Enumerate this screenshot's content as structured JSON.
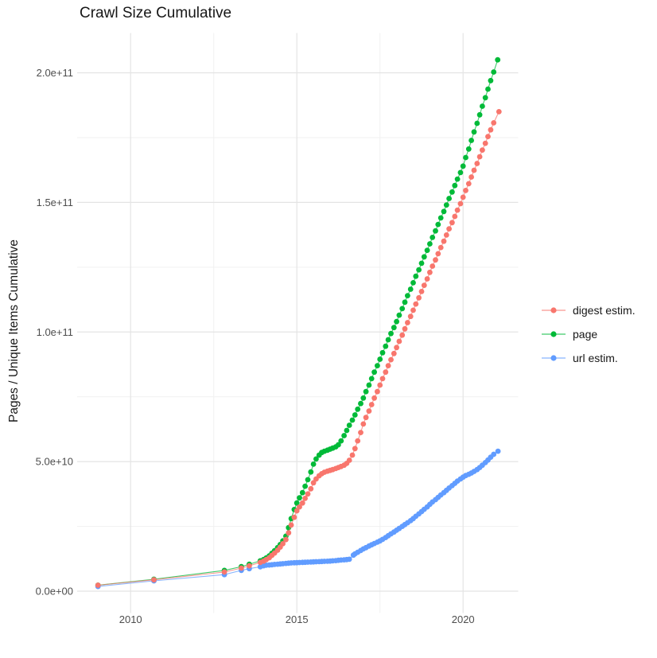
{
  "chart_data": {
    "type": "scatter",
    "title": "Crawl Size Cumulative",
    "xlabel": "",
    "ylabel": "Pages / Unique Items Cumulative",
    "legend_position": "right",
    "grid": true,
    "xlim": [
      2008.4,
      2021.6
    ],
    "ylim": [
      0,
      215000000000
    ],
    "x_ticks": [
      2010,
      2015,
      2020
    ],
    "x_tick_labels": [
      "2010",
      "2015",
      "2020"
    ],
    "x_minor_ticks": [
      2012.5,
      2017.5
    ],
    "y_ticks": [
      0,
      50000000000,
      100000000000,
      150000000000,
      200000000000
    ],
    "y_tick_labels": [
      "0.0e+00",
      "5.0e+10",
      "1.0e+11",
      "1.5e+11",
      "2.0e+11"
    ],
    "y_minor_ticks": [
      25000000000,
      75000000000,
      125000000000,
      175000000000
    ],
    "value_unit": "billions (1e9) of pages / unique items, x = calendar year",
    "series": [
      {
        "name": "digest estim.",
        "color": "#F8766D",
        "points": [
          [
            2009.02,
            2.3
          ],
          [
            2010.7,
            4.4
          ],
          [
            2012.82,
            7.4
          ],
          [
            2013.33,
            8.9
          ],
          [
            2013.57,
            9.8
          ],
          [
            2013.9,
            11.1
          ],
          [
            2014.0,
            11.6
          ],
          [
            2014.08,
            12.2
          ],
          [
            2014.17,
            12.9
          ],
          [
            2014.25,
            13.8
          ],
          [
            2014.33,
            14.7
          ],
          [
            2014.42,
            15.8
          ],
          [
            2014.5,
            17.0
          ],
          [
            2014.58,
            18.3
          ],
          [
            2014.67,
            19.9
          ],
          [
            2014.75,
            22.5
          ],
          [
            2014.83,
            25.5
          ],
          [
            2014.92,
            28.5
          ],
          [
            2015.0,
            31.0
          ],
          [
            2015.08,
            32.5
          ],
          [
            2015.17,
            34.0
          ],
          [
            2015.25,
            35.8
          ],
          [
            2015.33,
            37.5
          ],
          [
            2015.42,
            39.5
          ],
          [
            2015.5,
            41.8
          ],
          [
            2015.58,
            43.3
          ],
          [
            2015.67,
            44.5
          ],
          [
            2015.75,
            45.3
          ],
          [
            2015.83,
            45.9
          ],
          [
            2015.92,
            46.3
          ],
          [
            2016.0,
            46.6
          ],
          [
            2016.08,
            46.9
          ],
          [
            2016.17,
            47.3
          ],
          [
            2016.25,
            47.7
          ],
          [
            2016.33,
            48.1
          ],
          [
            2016.42,
            48.6
          ],
          [
            2016.5,
            49.3
          ],
          [
            2016.58,
            50.5
          ],
          [
            2016.67,
            52.5
          ],
          [
            2016.75,
            55.0
          ],
          [
            2016.83,
            58.0
          ],
          [
            2016.92,
            61.2
          ],
          [
            2017.0,
            64.5
          ],
          [
            2017.08,
            67.0
          ],
          [
            2017.17,
            69.5
          ],
          [
            2017.25,
            72.0
          ],
          [
            2017.33,
            74.5
          ],
          [
            2017.42,
            77.0
          ],
          [
            2017.5,
            79.5
          ],
          [
            2017.58,
            82.0
          ],
          [
            2017.67,
            84.5
          ],
          [
            2017.75,
            87.0
          ],
          [
            2017.83,
            89.3
          ],
          [
            2017.92,
            91.7
          ],
          [
            2018.0,
            94.0
          ],
          [
            2018.08,
            96.4
          ],
          [
            2018.17,
            98.8
          ],
          [
            2018.25,
            101.2
          ],
          [
            2018.33,
            103.6
          ],
          [
            2018.42,
            106.0
          ],
          [
            2018.5,
            108.4
          ],
          [
            2018.58,
            110.8
          ],
          [
            2018.67,
            113.2
          ],
          [
            2018.75,
            115.6
          ],
          [
            2018.83,
            118.0
          ],
          [
            2018.92,
            120.5
          ],
          [
            2019.0,
            123.0
          ],
          [
            2019.08,
            125.4
          ],
          [
            2019.17,
            127.8
          ],
          [
            2019.25,
            130.2
          ],
          [
            2019.33,
            132.6
          ],
          [
            2019.42,
            135.0
          ],
          [
            2019.5,
            137.4
          ],
          [
            2019.58,
            139.8
          ],
          [
            2019.67,
            142.2
          ],
          [
            2019.75,
            144.6
          ],
          [
            2019.83,
            147.0
          ],
          [
            2019.92,
            149.5
          ],
          [
            2020.0,
            152.0
          ],
          [
            2020.08,
            154.6
          ],
          [
            2020.17,
            157.2
          ],
          [
            2020.25,
            159.8
          ],
          [
            2020.33,
            162.4
          ],
          [
            2020.42,
            165.0
          ],
          [
            2020.5,
            167.6
          ],
          [
            2020.58,
            170.2
          ],
          [
            2020.67,
            172.8
          ],
          [
            2020.75,
            175.4
          ],
          [
            2020.83,
            178.0
          ],
          [
            2020.92,
            180.7
          ],
          [
            2021.08,
            185.0
          ]
        ]
      },
      {
        "name": "page",
        "color": "#00BA38",
        "points": [
          [
            2009.02,
            2.3
          ],
          [
            2010.7,
            4.6
          ],
          [
            2012.82,
            8.0
          ],
          [
            2013.33,
            9.5
          ],
          [
            2013.57,
            10.4
          ],
          [
            2013.9,
            11.7
          ],
          [
            2014.0,
            12.2
          ],
          [
            2014.08,
            12.8
          ],
          [
            2014.17,
            13.6
          ],
          [
            2014.25,
            14.6
          ],
          [
            2014.33,
            15.6
          ],
          [
            2014.42,
            16.8
          ],
          [
            2014.5,
            18.0
          ],
          [
            2014.58,
            19.4
          ],
          [
            2014.67,
            21.2
          ],
          [
            2014.75,
            24.5
          ],
          [
            2014.83,
            28.0
          ],
          [
            2014.92,
            31.5
          ],
          [
            2015.0,
            34.0
          ],
          [
            2015.08,
            36.0
          ],
          [
            2015.17,
            38.0
          ],
          [
            2015.25,
            40.5
          ],
          [
            2015.33,
            43.0
          ],
          [
            2015.42,
            46.0
          ],
          [
            2015.5,
            49.0
          ],
          [
            2015.58,
            51.0
          ],
          [
            2015.67,
            52.5
          ],
          [
            2015.75,
            53.5
          ],
          [
            2015.83,
            54.0
          ],
          [
            2015.92,
            54.4
          ],
          [
            2016.0,
            54.8
          ],
          [
            2016.08,
            55.2
          ],
          [
            2016.17,
            55.7
          ],
          [
            2016.25,
            56.5
          ],
          [
            2016.33,
            58.0
          ],
          [
            2016.42,
            60.0
          ],
          [
            2016.5,
            62.0
          ],
          [
            2016.58,
            64.0
          ],
          [
            2016.67,
            66.0
          ],
          [
            2016.75,
            68.0
          ],
          [
            2016.83,
            70.2
          ],
          [
            2016.92,
            72.4
          ],
          [
            2017.0,
            74.5
          ],
          [
            2017.08,
            77.0
          ],
          [
            2017.17,
            79.5
          ],
          [
            2017.25,
            82.0
          ],
          [
            2017.33,
            84.5
          ],
          [
            2017.42,
            87.0
          ],
          [
            2017.5,
            89.5
          ],
          [
            2017.58,
            92.0
          ],
          [
            2017.67,
            94.5
          ],
          [
            2017.75,
            97.0
          ],
          [
            2017.83,
            99.4
          ],
          [
            2017.92,
            101.7
          ],
          [
            2018.0,
            104.0
          ],
          [
            2018.08,
            106.5
          ],
          [
            2018.17,
            109.0
          ],
          [
            2018.25,
            111.5
          ],
          [
            2018.33,
            114.0
          ],
          [
            2018.42,
            116.5
          ],
          [
            2018.5,
            119.0
          ],
          [
            2018.58,
            121.5
          ],
          [
            2018.67,
            124.0
          ],
          [
            2018.75,
            126.5
          ],
          [
            2018.83,
            129.0
          ],
          [
            2018.92,
            131.5
          ],
          [
            2019.0,
            134.0
          ],
          [
            2019.08,
            136.5
          ],
          [
            2019.17,
            139.0
          ],
          [
            2019.25,
            141.5
          ],
          [
            2019.33,
            144.0
          ],
          [
            2019.42,
            146.5
          ],
          [
            2019.5,
            149.0
          ],
          [
            2019.58,
            151.5
          ],
          [
            2019.67,
            154.0
          ],
          [
            2019.75,
            156.5
          ],
          [
            2019.83,
            159.0
          ],
          [
            2019.92,
            161.5
          ],
          [
            2020.0,
            164.0
          ],
          [
            2020.08,
            167.3
          ],
          [
            2020.17,
            170.6
          ],
          [
            2020.25,
            173.9
          ],
          [
            2020.33,
            177.2
          ],
          [
            2020.42,
            180.5
          ],
          [
            2020.5,
            183.8
          ],
          [
            2020.58,
            187.1
          ],
          [
            2020.67,
            190.4
          ],
          [
            2020.75,
            193.7
          ],
          [
            2020.83,
            197.0
          ],
          [
            2020.92,
            200.3
          ],
          [
            2021.04,
            205.0
          ]
        ]
      },
      {
        "name": "url estim.",
        "color": "#619CFF",
        "points": [
          [
            2009.02,
            1.8
          ],
          [
            2010.7,
            4.0
          ],
          [
            2012.82,
            6.4
          ],
          [
            2013.33,
            8.0
          ],
          [
            2013.57,
            8.7
          ],
          [
            2013.9,
            9.4
          ],
          [
            2014.0,
            9.8
          ],
          [
            2014.08,
            10.0
          ],
          [
            2014.17,
            10.1
          ],
          [
            2014.25,
            10.2
          ],
          [
            2014.33,
            10.3
          ],
          [
            2014.42,
            10.4
          ],
          [
            2014.5,
            10.5
          ],
          [
            2014.58,
            10.6
          ],
          [
            2014.67,
            10.7
          ],
          [
            2014.75,
            10.8
          ],
          [
            2014.83,
            10.9
          ],
          [
            2014.92,
            10.95
          ],
          [
            2015.0,
            11.0
          ],
          [
            2015.08,
            11.05
          ],
          [
            2015.17,
            11.1
          ],
          [
            2015.25,
            11.15
          ],
          [
            2015.33,
            11.2
          ],
          [
            2015.42,
            11.25
          ],
          [
            2015.5,
            11.3
          ],
          [
            2015.58,
            11.35
          ],
          [
            2015.67,
            11.4
          ],
          [
            2015.75,
            11.45
          ],
          [
            2015.83,
            11.5
          ],
          [
            2015.92,
            11.55
          ],
          [
            2016.0,
            11.6
          ],
          [
            2016.08,
            11.7
          ],
          [
            2016.17,
            11.8
          ],
          [
            2016.25,
            11.9
          ],
          [
            2016.33,
            12.0
          ],
          [
            2016.42,
            12.1
          ],
          [
            2016.5,
            12.2
          ],
          [
            2016.58,
            12.3
          ],
          [
            2016.7,
            13.9
          ],
          [
            2016.75,
            14.4
          ],
          [
            2016.83,
            15.0
          ],
          [
            2016.92,
            15.7
          ],
          [
            2017.0,
            16.3
          ],
          [
            2017.08,
            16.8
          ],
          [
            2017.17,
            17.4
          ],
          [
            2017.25,
            17.9
          ],
          [
            2017.33,
            18.4
          ],
          [
            2017.42,
            18.9
          ],
          [
            2017.5,
            19.4
          ],
          [
            2017.58,
            20.0
          ],
          [
            2017.67,
            20.7
          ],
          [
            2017.75,
            21.4
          ],
          [
            2017.83,
            22.1
          ],
          [
            2017.92,
            22.8
          ],
          [
            2018.0,
            23.5
          ],
          [
            2018.08,
            24.2
          ],
          [
            2018.17,
            25.0
          ],
          [
            2018.25,
            25.7
          ],
          [
            2018.33,
            26.4
          ],
          [
            2018.42,
            27.2
          ],
          [
            2018.5,
            28.0
          ],
          [
            2018.58,
            28.9
          ],
          [
            2018.67,
            29.8
          ],
          [
            2018.75,
            30.7
          ],
          [
            2018.83,
            31.6
          ],
          [
            2018.92,
            32.5
          ],
          [
            2019.0,
            33.5
          ],
          [
            2019.08,
            34.4
          ],
          [
            2019.17,
            35.3
          ],
          [
            2019.25,
            36.2
          ],
          [
            2019.33,
            37.1
          ],
          [
            2019.42,
            38.0
          ],
          [
            2019.5,
            38.9
          ],
          [
            2019.58,
            39.8
          ],
          [
            2019.67,
            40.7
          ],
          [
            2019.75,
            41.6
          ],
          [
            2019.83,
            42.5
          ],
          [
            2019.92,
            43.3
          ],
          [
            2020.0,
            44.0
          ],
          [
            2020.08,
            44.6
          ],
          [
            2020.17,
            45.1
          ],
          [
            2020.25,
            45.6
          ],
          [
            2020.33,
            46.2
          ],
          [
            2020.42,
            46.9
          ],
          [
            2020.5,
            47.7
          ],
          [
            2020.58,
            48.6
          ],
          [
            2020.67,
            49.6
          ],
          [
            2020.75,
            50.6
          ],
          [
            2020.83,
            51.7
          ],
          [
            2020.92,
            52.8
          ],
          [
            2021.05,
            54.0
          ]
        ]
      }
    ]
  }
}
